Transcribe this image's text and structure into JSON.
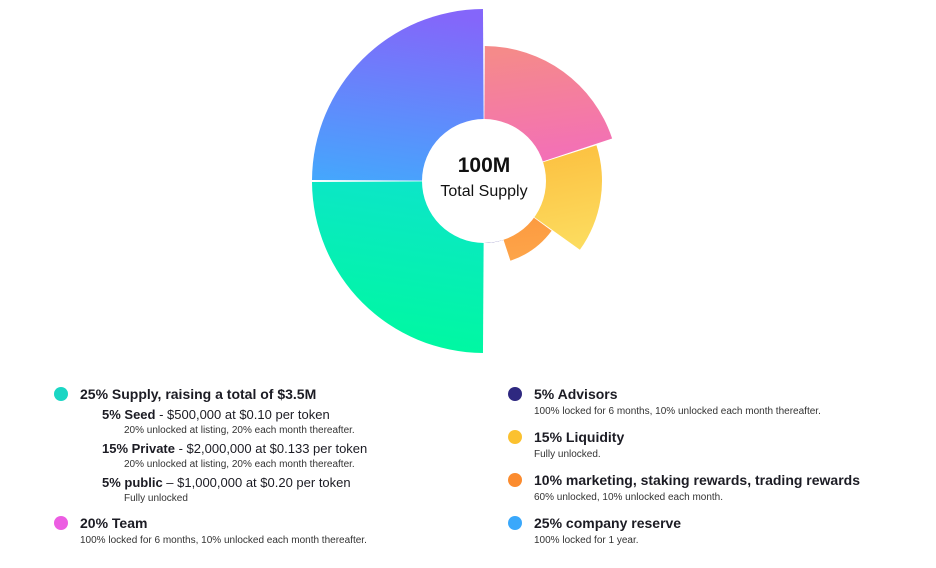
{
  "chart_data": {
    "type": "pie",
    "variant": "rose (variable radius) with center hole",
    "center": {
      "total": "100M",
      "label": "Total Supply"
    },
    "slices": [
      {
        "name": "Team",
        "value": 20,
        "color_from": "#f04df2",
        "color_to": "#f58a8a"
      },
      {
        "name": "Liquidity",
        "value": 15,
        "color_from": "#fce76b",
        "color_to": "#fba927"
      },
      {
        "name": "Marketing, staking rewards, trading rewards",
        "value": 10,
        "color_from": "#fda54a",
        "color_to": "#fb7b22"
      },
      {
        "name": "Advisors",
        "value": 5,
        "color_from": "#3e3798",
        "color_to": "#26206e"
      },
      {
        "name": "Supply",
        "value": 25,
        "color_from": "#00f8a2",
        "color_to": "#19d2f0"
      },
      {
        "name": "Company reserve",
        "value": 25,
        "color_from": "#10dcff",
        "color_to": "#8466fa"
      }
    ]
  },
  "legend": {
    "supply": {
      "title": "25% Supply, raising a total of $3.5M",
      "color": "#1ad6c4",
      "rounds": [
        {
          "name": "5% Seed",
          "detail": " - $500,000 at $0.10 per token",
          "desc": "20% unlocked at listing, 20% each month thereafter."
        },
        {
          "name": "15% Private",
          "detail": " - $2,000,000 at $0.133 per token",
          "desc": "20% unlocked at listing, 20% each month thereafter."
        },
        {
          "name": "5% public",
          "detail": " – $1,000,000 at $0.20 per token",
          "desc": "Fully unlocked"
        }
      ]
    },
    "team": {
      "title": "20% Team",
      "desc": "100% locked for 6 months, 10% unlocked each month thereafter.",
      "color": "#ec5de2"
    },
    "advisors": {
      "title": "5% Advisors",
      "desc": "100% locked for 6 months, 10% unlocked each month thereafter.",
      "color": "#2e2880"
    },
    "liquidity": {
      "title": "15% Liquidity",
      "desc": "Fully unlocked.",
      "color": "#fbc12f"
    },
    "marketing": {
      "title": "10% marketing, staking rewards, trading rewards",
      "desc": "60% unlocked, 10% unlocked each month.",
      "color": "#fb8b2e"
    },
    "reserve": {
      "title": "25% company reserve",
      "desc": "100% locked for 1 year.",
      "color": "#3aa8fb"
    }
  }
}
